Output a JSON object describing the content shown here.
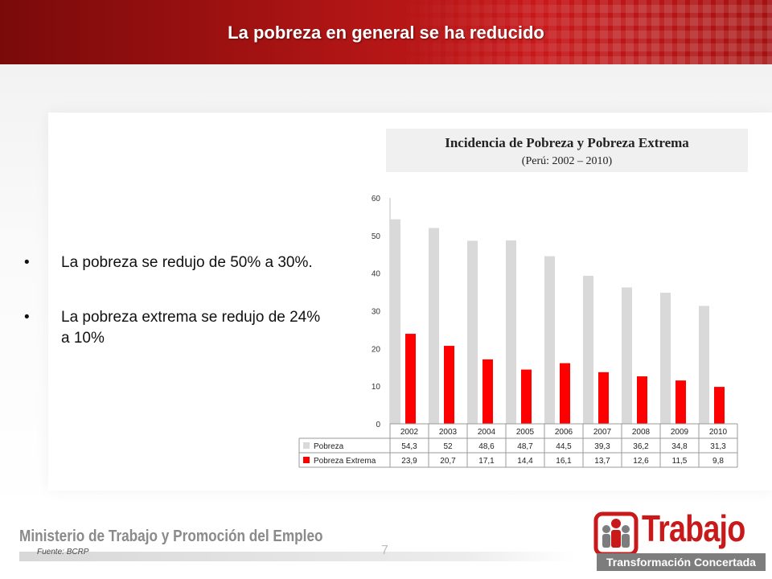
{
  "slide": {
    "title": "La pobreza en general se ha reducido",
    "bullets": [
      "La pobreza se redujo de 50% a 30%.",
      "La pobreza extrema se redujo de 24% a 10%"
    ],
    "bullet_symbol": "•"
  },
  "chart_heading": {
    "title": "Incidencia de Pobreza y Pobreza Extrema",
    "subtitle": "(Perú: 2002 – 2010)"
  },
  "chart_data": {
    "type": "bar",
    "categories": [
      "2002",
      "2003",
      "2004",
      "2005",
      "2006",
      "2007",
      "2008",
      "2009",
      "2010"
    ],
    "series": [
      {
        "name": "Pobreza",
        "color": "#d9d9d9",
        "values": [
          54.3,
          52,
          48.6,
          48.7,
          44.5,
          39.3,
          36.2,
          34.8,
          31.3
        ],
        "labels": [
          "54,3",
          "52",
          "48,6",
          "48,7",
          "44,5",
          "39,3",
          "36,2",
          "34,8",
          "31,3"
        ]
      },
      {
        "name": "Pobreza Extrema",
        "color": "#ff0000",
        "values": [
          23.9,
          20.7,
          17.1,
          14.4,
          16.1,
          13.7,
          12.6,
          11.5,
          9.8
        ],
        "labels": [
          "23,9",
          "20,7",
          "17,1",
          "14,4",
          "16,1",
          "13,7",
          "12,6",
          "11,5",
          "9,8"
        ]
      }
    ],
    "y_ticks": [
      "0",
      "10",
      "20",
      "30",
      "40",
      "50",
      "60"
    ],
    "ylim": [
      0,
      60
    ],
    "data_table": true,
    "grid": false
  },
  "footer": {
    "ministry": "Ministerio de Trabajo y Promoción del Empleo",
    "source": "Fuente: BCRP",
    "page_number": "7",
    "brand_name": "Trabajo",
    "brand_tagline": "Transformación Concertada"
  }
}
